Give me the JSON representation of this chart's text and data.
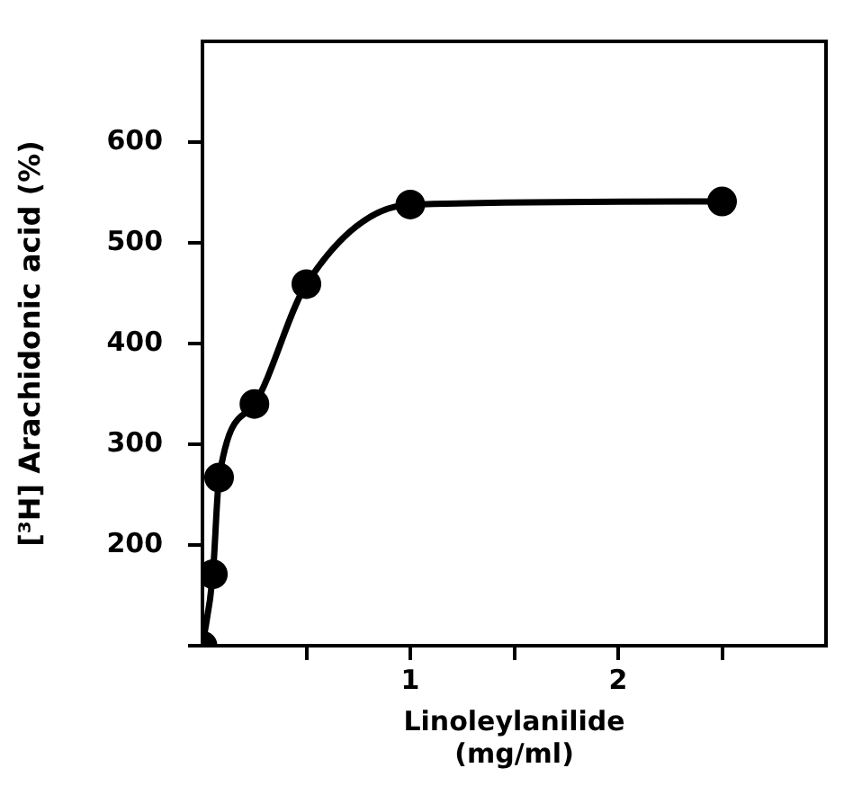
{
  "chart_data": {
    "type": "line",
    "xlabel": "Linoleylanilide\n(mg/ml)",
    "ylabel": "[³H] Arachidonic acid (%)",
    "x": [
      0,
      0.05,
      0.08,
      0.25,
      0.5,
      1,
      2.5
    ],
    "series": [
      {
        "color": "#000000",
        "values": [
          100,
          171,
          267,
          340,
          459,
          538,
          541
        ]
      }
    ],
    "xlim": [
      0,
      3
    ],
    "xticks": [
      {
        "value": 0.5,
        "label": null
      },
      1,
      {
        "value": 1.5,
        "label": null
      },
      2,
      {
        "value": 2.5,
        "label": null
      }
    ],
    "ylim": [
      100,
      700
    ],
    "yticks": [
      {
        "value": 100,
        "label": null
      },
      200,
      300,
      400,
      500,
      600
    ],
    "grid": false,
    "legend": false,
    "marker": "circle",
    "line_style": "solid"
  }
}
